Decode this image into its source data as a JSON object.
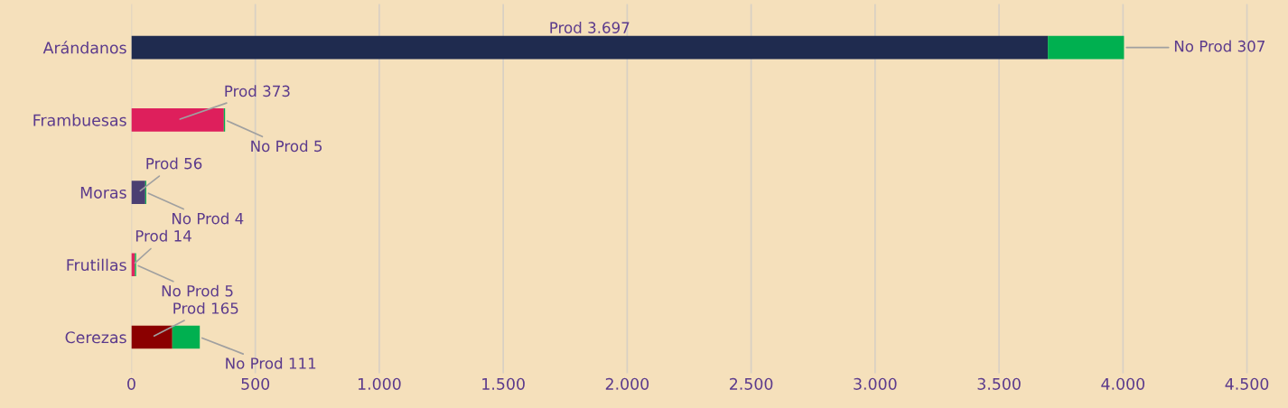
{
  "chart_data": {
    "type": "bar",
    "orientation": "horizontal",
    "stacked": true,
    "categories": [
      "Arándanos",
      "Frambuesas",
      "Moras",
      "Frutillas",
      "Cerezas"
    ],
    "series": [
      {
        "colors": [
          "#1f2b4f",
          "#de1f5c",
          "#4b3f72",
          "#e0245e",
          "#8b0000"
        ],
        "values": [
          3697,
          373,
          56,
          14,
          165
        ],
        "value_labels": [
          "Prod 3.697",
          "Prod 373",
          "Prod 56",
          "Prod 14",
          "Prod 165"
        ]
      },
      {
        "color": "#00b050",
        "values": [
          307,
          5,
          4,
          5,
          111
        ],
        "value_labels": [
          "No Prod 307",
          "No Prod 5",
          "No Prod 4",
          "No Prod 5",
          "No Prod 111"
        ]
      }
    ],
    "xlim": [
      0,
      4650
    ],
    "xticks": [
      0,
      500,
      {
        "value": 1000,
        "label": "1.000"
      },
      {
        "value": 1500,
        "label": "1.500"
      },
      {
        "value": 2000,
        "label": "2.000"
      },
      {
        "value": 2500,
        "label": "2.500"
      },
      {
        "value": 3000,
        "label": "3.000"
      },
      {
        "value": 3500,
        "label": "3.500"
      },
      {
        "value": 4000,
        "label": "4.000"
      },
      {
        "value": 4500,
        "label": "4.500"
      }
    ],
    "grid": "x",
    "legend": false
  }
}
